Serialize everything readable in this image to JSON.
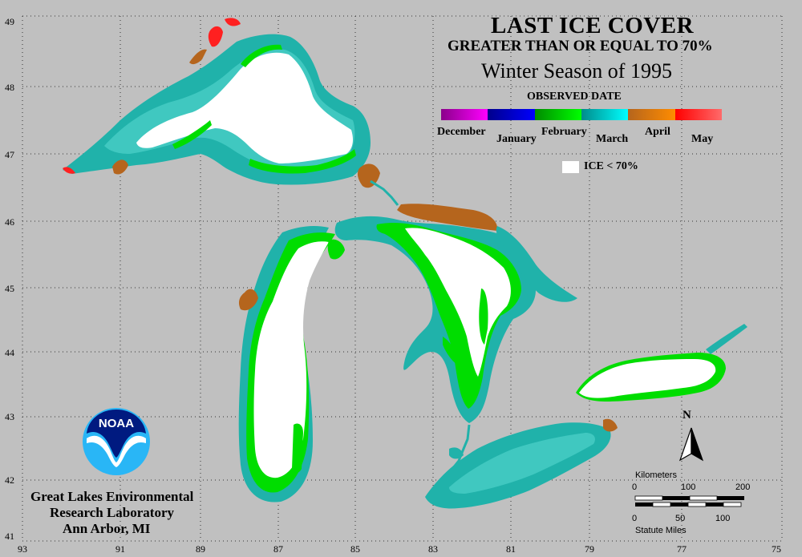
{
  "title": {
    "line1": "LAST ICE COVER",
    "line2": "GREATER THAN OR EQUAL TO 70%",
    "line3": "Winter Season of 1995"
  },
  "legend": {
    "heading": "OBSERVED DATE",
    "months": [
      {
        "label": "December",
        "color_a": "#8b008b",
        "color_b": "#ff00ff"
      },
      {
        "label": "January",
        "color_a": "#00008b",
        "color_b": "#0000ff"
      },
      {
        "label": "February",
        "color_a": "#008b00",
        "color_b": "#00ff00"
      },
      {
        "label": "March",
        "color_a": "#008b8b",
        "color_b": "#00ffff"
      },
      {
        "label": "April",
        "color_a": "#b5651d",
        "color_b": "#ff8c00"
      },
      {
        "label": "May",
        "color_a": "#ff0000",
        "color_b": "#ff6a6a"
      }
    ],
    "ice_label": "ICE < 70%"
  },
  "latitudes": [
    "49",
    "48",
    "47",
    "46",
    "45",
    "44",
    "43",
    "42",
    "41"
  ],
  "longitudes": [
    "93",
    "91",
    "89",
    "87",
    "85",
    "83",
    "81",
    "79",
    "77",
    "75"
  ],
  "agency": {
    "logo_text": "NOAA",
    "line1": "Great Lakes Environmental",
    "line2": "Research Laboratory",
    "line3": "Ann Arbor, MI"
  },
  "scale": {
    "km_title": "Kilometers",
    "km_ticks": [
      "0",
      "100",
      "200"
    ],
    "mi_ticks": [
      "0",
      "50",
      "100"
    ],
    "mi_title": "Statute Miles"
  },
  "north": "N",
  "colors": {
    "background": "#c0c0c0",
    "march": "#20b2aa",
    "february": "#00dd00",
    "april": "#b5651d",
    "may": "#ff2020",
    "ice": "#ffffff"
  }
}
